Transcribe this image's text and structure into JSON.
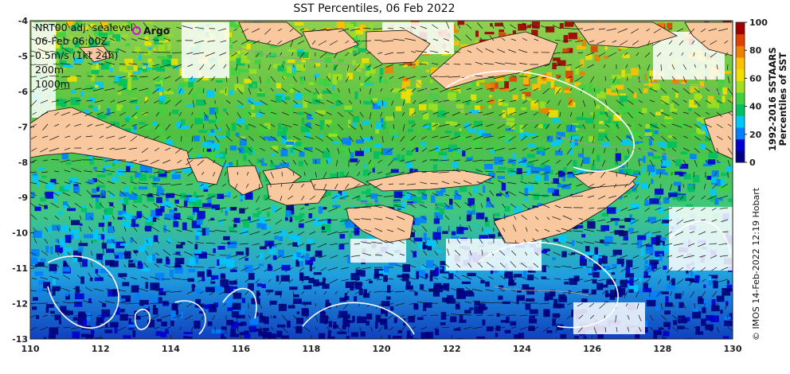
{
  "title": "SST Percentiles, 06 Feb 2022",
  "info": {
    "line1": "NRT00 adj. sealevel",
    "line2": "06-Feb 06:00Z",
    "line3": "0.5m/s (1kt 24h)",
    "line4": "200m",
    "line5": "1000m"
  },
  "legend": {
    "argo_label": "Argo",
    "argo_color": "#e000e0"
  },
  "colorbar": {
    "title_line1": "1992-2016 SSTAARS",
    "title_line2": "Percentiles of SST",
    "ticks": [
      "100",
      "80",
      "60",
      "40",
      "20",
      "0"
    ],
    "colors": [
      "#000080",
      "#0000d0",
      "#0080ff",
      "#00c8ff",
      "#00c060",
      "#40d040",
      "#a0e020",
      "#f0e000",
      "#ffc000",
      "#f08000",
      "#e04000",
      "#a00000"
    ]
  },
  "credit": "© IMOS 14-Feb-2022 12:19 Hobart",
  "axes": {
    "x_ticks": [
      "110",
      "112",
      "114",
      "116",
      "118",
      "120",
      "122",
      "124",
      "126",
      "128",
      "130"
    ],
    "y_ticks": [
      "-4",
      "-5",
      "-6",
      "-7",
      "-8",
      "-9",
      "-10",
      "-11",
      "-12",
      "-13"
    ],
    "x_range": [
      110,
      130
    ],
    "y_range": [
      -13,
      -4
    ]
  },
  "land_color": "#f9c89e"
}
